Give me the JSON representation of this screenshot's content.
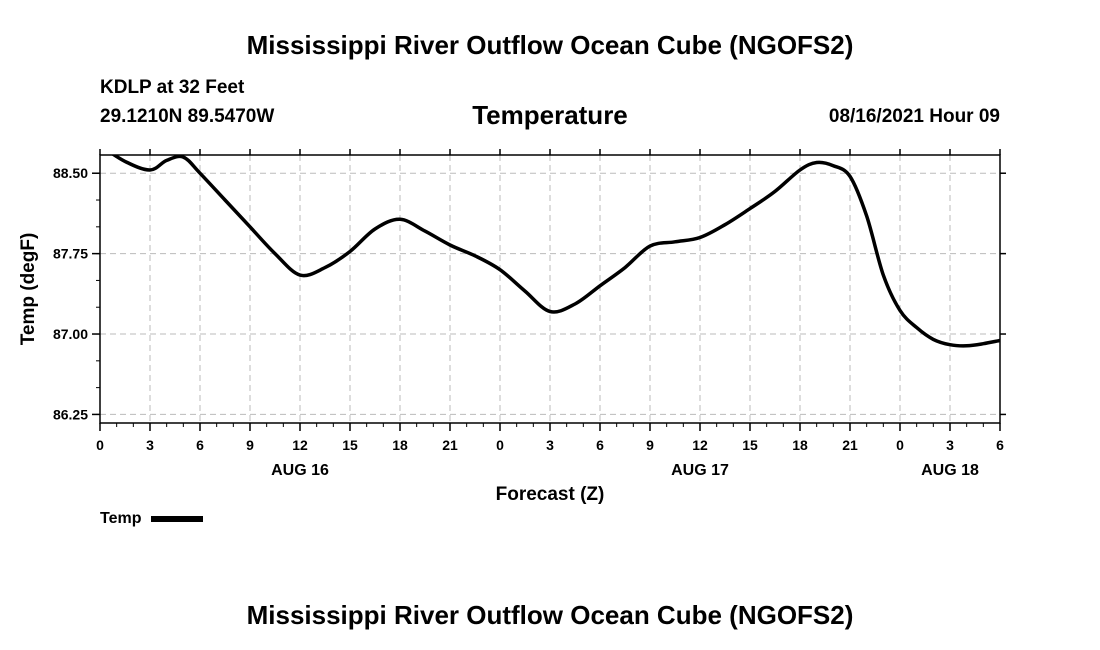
{
  "header": {
    "title": "Mississippi River Outflow Ocean Cube (NGOFS2)",
    "station": "KDLP at 32 Feet",
    "coords": "29.1210N  89.5470W",
    "subtitle": "Temperature",
    "timestamp": "08/16/2021 Hour 09"
  },
  "footer": {
    "title": "Mississippi River Outflow Ocean Cube (NGOFS2)"
  },
  "legend": {
    "label": "Temp"
  },
  "chart_data": {
    "type": "line",
    "title": "Temperature",
    "xlabel": "Forecast (Z)",
    "ylabel": "Temp (degF)",
    "xlim": [
      0,
      54
    ],
    "ylim": [
      86.17,
      88.67
    ],
    "grid": true,
    "x_tick_values": [
      0,
      3,
      6,
      9,
      12,
      15,
      18,
      21,
      24,
      27,
      30,
      33,
      36,
      39,
      42,
      45,
      48,
      51,
      54
    ],
    "x_tick_labels": [
      "0",
      "3",
      "6",
      "9",
      "12",
      "15",
      "18",
      "21",
      "0",
      "3",
      "6",
      "9",
      "12",
      "15",
      "18",
      "21",
      "0",
      "3",
      "6"
    ],
    "date_labels": [
      {
        "x": 12,
        "label": "AUG 16"
      },
      {
        "x": 36,
        "label": "AUG 17"
      },
      {
        "x": 51,
        "label": "AUG 18"
      }
    ],
    "y_tick_values": [
      86.25,
      87.0,
      87.75,
      88.5
    ],
    "y_tick_labels": [
      "86.25",
      "87.00",
      "87.75",
      "88.50"
    ],
    "series": [
      {
        "name": "Temp",
        "color": "#000000",
        "x": [
          0,
          1.5,
          3,
          4,
          5,
          6,
          7.5,
          9,
          10.5,
          12,
          13.5,
          15,
          16.5,
          18,
          19.5,
          21,
          22.5,
          24,
          25.5,
          27,
          28.5,
          30,
          31.5,
          33,
          34.5,
          36,
          37.5,
          39,
          40.5,
          42,
          43,
          44,
          45,
          46,
          47,
          48,
          49,
          50,
          51,
          52,
          53,
          54
        ],
        "values": [
          88.76,
          88.61,
          88.53,
          88.62,
          88.65,
          88.5,
          88.25,
          88.0,
          87.75,
          87.55,
          87.62,
          87.77,
          87.98,
          88.07,
          87.96,
          87.83,
          87.73,
          87.6,
          87.4,
          87.21,
          87.28,
          87.45,
          87.62,
          87.82,
          87.86,
          87.9,
          88.02,
          88.17,
          88.33,
          88.53,
          88.6,
          88.57,
          88.47,
          88.1,
          87.55,
          87.22,
          87.06,
          86.95,
          86.9,
          86.89,
          86.91,
          86.94
        ]
      }
    ]
  }
}
